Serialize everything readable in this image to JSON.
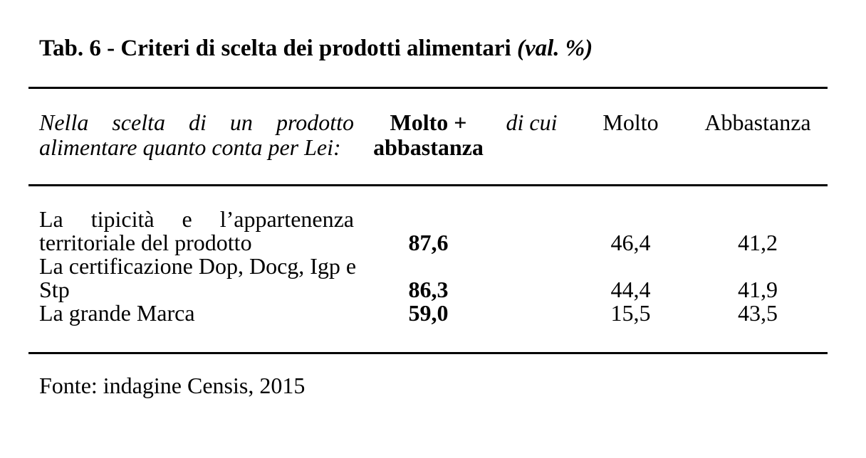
{
  "colors": {
    "text": "#000000",
    "background": "#ffffff",
    "rule": "#000000"
  },
  "caption": {
    "main": "Tab. 6 - Criteri di scelta dei prodotti alimentari ",
    "suffix": "(val. %)"
  },
  "table": {
    "header": {
      "question_line1": "Nella scelta di un prodotto",
      "question_line2": "alimentare quanto conta per Lei:",
      "molto_abbastanza_line1": "Molto +",
      "molto_abbastanza_line2": "abbastanza",
      "di_cui": "di cui",
      "molto": "Molto",
      "abbastanza": "Abbastanza"
    },
    "rows": [
      {
        "label_line1": "La tipicità e l’appartenenza",
        "label_line2": "territoriale del prodotto",
        "molto_abbastanza": "87,6",
        "molto": "46,4",
        "abbastanza": "41,2"
      },
      {
        "label_line1": "La certificazione Dop, Docg, Igp e",
        "label_line2": "Stp",
        "molto_abbastanza": "86,3",
        "molto": "44,4",
        "abbastanza": "41,9"
      },
      {
        "label_line1": "La grande Marca",
        "molto_abbastanza": "59,0",
        "molto": "15,5",
        "abbastanza": "43,5"
      }
    ]
  },
  "source": "Fonte: indagine Censis, 2015"
}
